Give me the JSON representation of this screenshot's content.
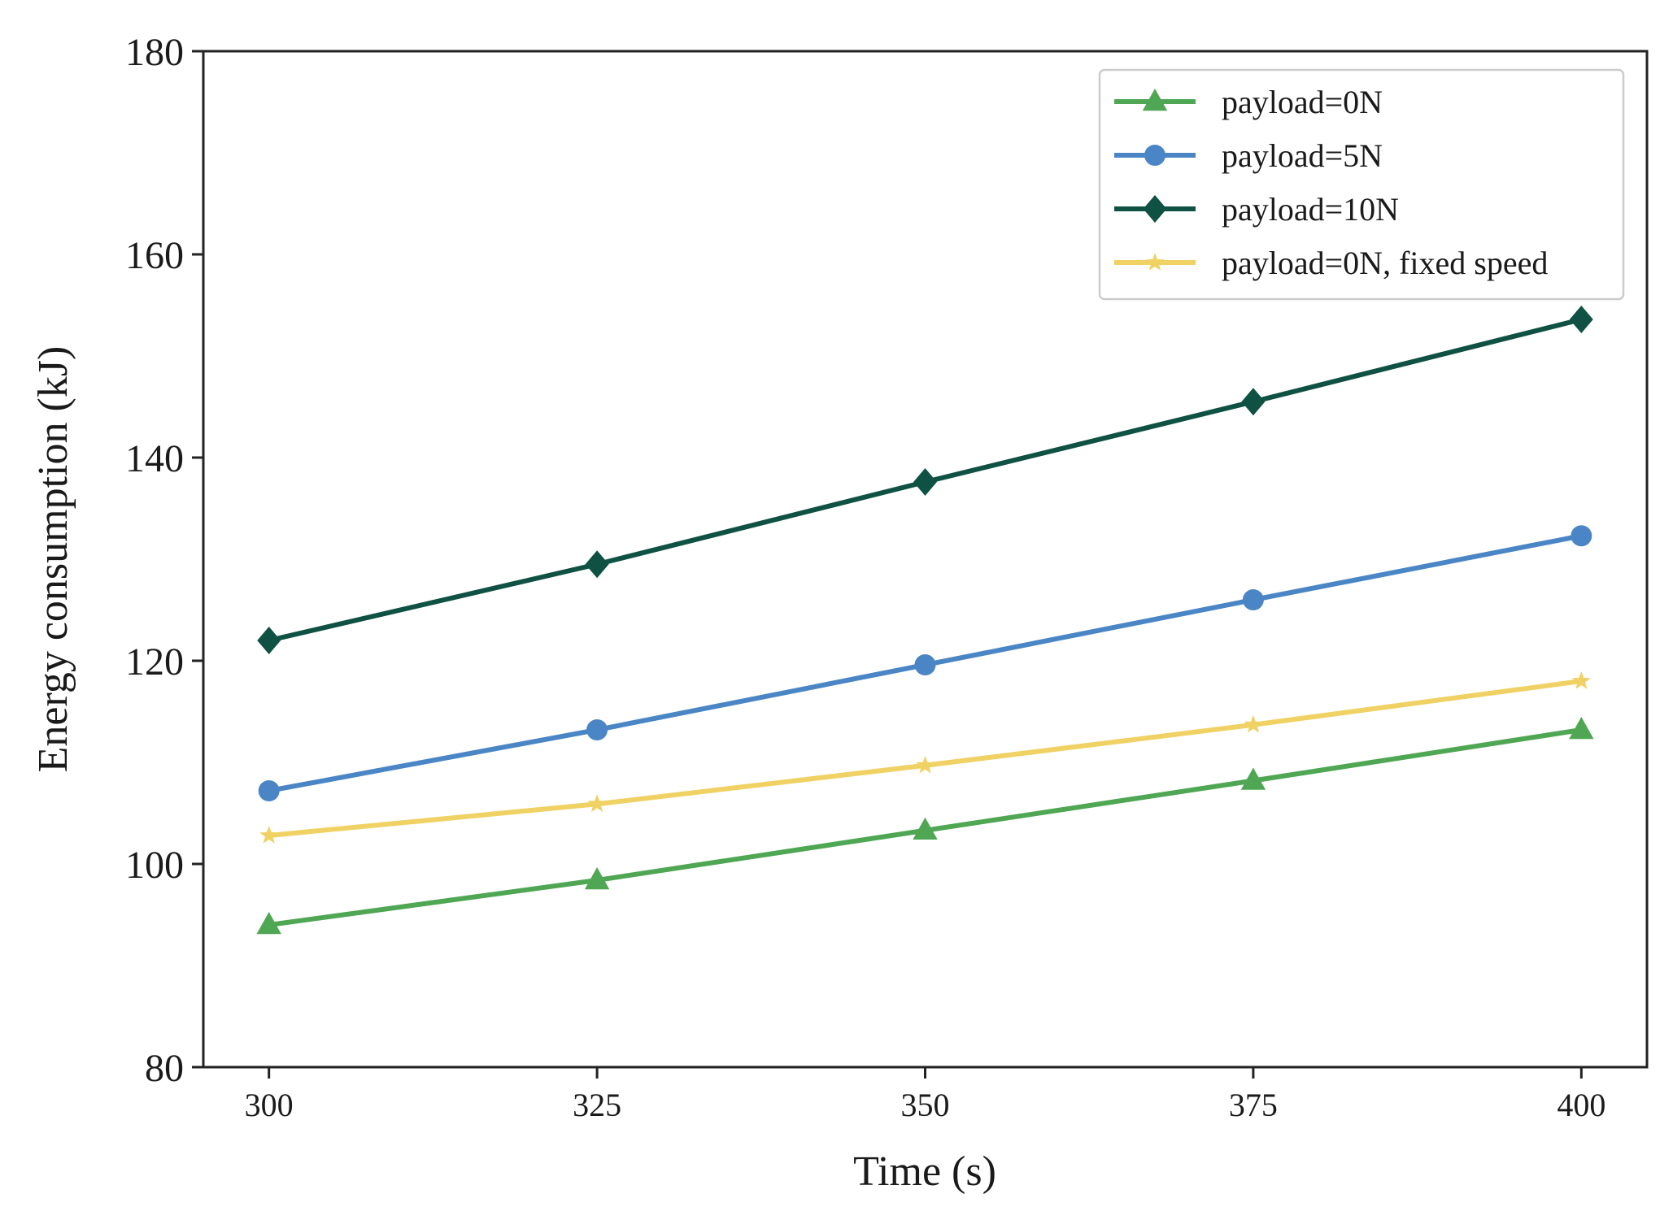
{
  "chart_data": {
    "type": "line",
    "title": "",
    "xlabel": "Time (s)",
    "ylabel": "Energy consumption (kJ)",
    "x": [
      300,
      325,
      350,
      375,
      400
    ],
    "xticks": [
      "300",
      "325",
      "350",
      "375",
      "400"
    ],
    "yticks": [
      "80",
      "100",
      "120",
      "140",
      "160",
      "180"
    ],
    "ylim": [
      80,
      180
    ],
    "xlim": [
      295,
      405
    ],
    "grid": false,
    "legend_position": "top-right",
    "series": [
      {
        "name": "payload=0N",
        "color": "#4fa754",
        "marker": "triangle",
        "values": [
          94.0,
          98.4,
          103.3,
          108.2,
          113.2
        ]
      },
      {
        "name": "payload=5N",
        "color": "#4a86c5",
        "marker": "circle",
        "values": [
          107.2,
          113.2,
          119.6,
          126.0,
          132.3
        ]
      },
      {
        "name": "payload=10N",
        "color": "#0f5142",
        "marker": "diamond",
        "values": [
          122.0,
          129.5,
          137.6,
          145.5,
          153.6
        ]
      },
      {
        "name": "payload=0N, fixed speed",
        "color": "#f0d163",
        "marker": "star",
        "values": [
          102.8,
          105.9,
          109.7,
          113.7,
          118.0
        ]
      }
    ]
  }
}
